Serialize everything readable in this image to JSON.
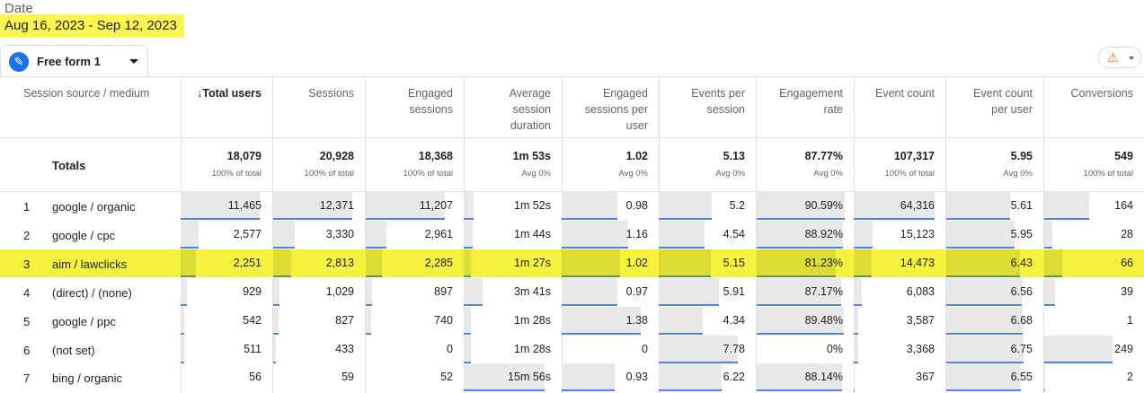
{
  "report": {
    "date_label": "Date",
    "date_range": "Aug 16, 2023 - Sep 12, 2023",
    "tab_label": "Free form 1",
    "tab_icon": "pencil-icon",
    "warning_icon": "warning-icon"
  },
  "table": {
    "columns": [
      {
        "label": "Session source / medium"
      },
      {
        "label": "↓Total users",
        "max": 11465
      },
      {
        "label": "Sessions",
        "max": 12371
      },
      {
        "label": "Engaged\nsessions",
        "max": 11207
      },
      {
        "label": "Average\nsession\nduration",
        "max": 956
      },
      {
        "label": "Engaged\nsessions per\nuser",
        "max": 1.38
      },
      {
        "label": "Events per\nsession",
        "max": 7.78
      },
      {
        "label": "Engagement\nrate",
        "max": 90.59
      },
      {
        "label": "Event count",
        "max": 64316
      },
      {
        "label": "Event count\nper user",
        "max": 6.75
      },
      {
        "label": "Conversions",
        "max": 249
      }
    ],
    "totals": {
      "label": "Totals",
      "values": [
        "18,079",
        "20,928",
        "18,368",
        "1m 53s",
        "1.02",
        "5.13",
        "87.77%",
        "107,317",
        "5.95",
        "549"
      ],
      "subs": [
        "100% of total",
        "100% of total",
        "100% of total",
        "Avg 0%",
        "Avg 0%",
        "Avg 0%",
        "Avg 0%",
        "100% of total",
        "Avg 0%",
        "100% of total"
      ]
    },
    "rows": [
      {
        "index": "1",
        "source": "google / organic",
        "highlight": false,
        "cells": [
          "11,465",
          "12,371",
          "11,207",
          "1m 52s",
          "0.98",
          "5.2",
          "90.59%",
          "64,316",
          "5.61",
          "164"
        ],
        "nums": [
          11465,
          12371,
          11207,
          112,
          0.98,
          5.2,
          90.59,
          64316,
          5.61,
          164
        ]
      },
      {
        "index": "2",
        "source": "google / cpc",
        "highlight": false,
        "cells": [
          "2,577",
          "3,330",
          "2,961",
          "1m 44s",
          "1.16",
          "4.54",
          "88.92%",
          "15,123",
          "5.95",
          "28"
        ],
        "nums": [
          2577,
          3330,
          2961,
          104,
          1.16,
          4.54,
          88.92,
          15123,
          5.95,
          28
        ]
      },
      {
        "index": "3",
        "source": "aim / lawclicks",
        "highlight": true,
        "cells": [
          "2,251",
          "2,813",
          "2,285",
          "1m 27s",
          "1.02",
          "5.15",
          "81.23%",
          "14,473",
          "6.43",
          "66"
        ],
        "nums": [
          2251,
          2813,
          2285,
          87,
          1.02,
          5.15,
          81.23,
          14473,
          6.43,
          66
        ]
      },
      {
        "index": "4",
        "source": "(direct) / (none)",
        "highlight": false,
        "cells": [
          "929",
          "1,029",
          "897",
          "3m 41s",
          "0.97",
          "5.91",
          "87.17%",
          "6,083",
          "6.56",
          "39"
        ],
        "nums": [
          929,
          1029,
          897,
          221,
          0.97,
          5.91,
          87.17,
          6083,
          6.56,
          39
        ]
      },
      {
        "index": "5",
        "source": "google / ppc",
        "highlight": false,
        "cells": [
          "542",
          "827",
          "740",
          "1m 28s",
          "1.38",
          "4.34",
          "89.48%",
          "3,587",
          "6.68",
          "1"
        ],
        "nums": [
          542,
          827,
          740,
          88,
          1.38,
          4.34,
          89.48,
          3587,
          6.68,
          1
        ]
      },
      {
        "index": "6",
        "source": "(not set)",
        "highlight": false,
        "cells": [
          "511",
          "433",
          "0",
          "1m 28s",
          "0",
          "7.78",
          "0%",
          "3,368",
          "6.75",
          "249"
        ],
        "nums": [
          511,
          433,
          0,
          88,
          0,
          7.78,
          0,
          3368,
          6.75,
          249
        ]
      },
      {
        "index": "7",
        "source": "bing / organic",
        "highlight": false,
        "cells": [
          "56",
          "59",
          "52",
          "15m 56s",
          "0.93",
          "6.22",
          "88.14%",
          "367",
          "6.55",
          "2"
        ],
        "nums": [
          56,
          59,
          52,
          956,
          0.93,
          6.22,
          88.14,
          367,
          6.55,
          2
        ]
      }
    ]
  },
  "colors": {
    "highlight": "#f5f23e",
    "bar_line": "#4c84e9",
    "accent": "#1a73e8",
    "warning": "#e8710a"
  }
}
